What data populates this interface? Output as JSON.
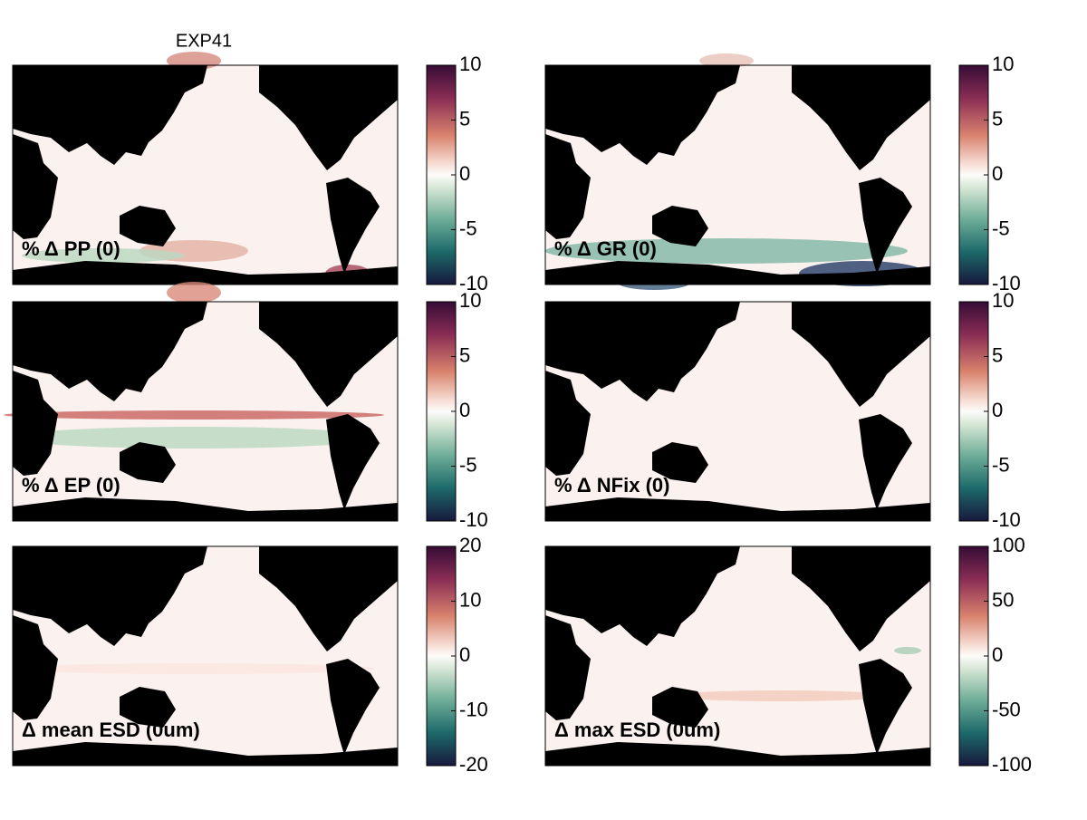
{
  "chart_data": [
    {
      "type": "map",
      "title": "EXP41",
      "label": "% Δ PP (0)",
      "clim": [
        -10,
        10
      ],
      "cticks": [
        10,
        5,
        0,
        -5,
        -10
      ]
    },
    {
      "type": "map",
      "label": "% Δ GR (0)",
      "clim": [
        -10,
        10
      ],
      "cticks": [
        10,
        5,
        0,
        -5,
        -10
      ]
    },
    {
      "type": "map",
      "label": "% Δ EP (0)",
      "clim": [
        -10,
        10
      ],
      "cticks": [
        10,
        5,
        0,
        -5,
        -10
      ]
    },
    {
      "type": "map",
      "label": "% Δ NFix (0)",
      "clim": [
        -10,
        10
      ],
      "cticks": [
        10,
        5,
        0,
        -5,
        -10
      ]
    },
    {
      "type": "map",
      "label": "Δ mean ESD (0um)",
      "clim": [
        -20,
        20
      ],
      "cticks": [
        20,
        10,
        0,
        -10,
        -20
      ]
    },
    {
      "type": "map",
      "label": "Δ max ESD (0um)",
      "clim": [
        -100,
        100
      ],
      "cticks": [
        100,
        50,
        0,
        -50,
        -100
      ]
    }
  ]
}
